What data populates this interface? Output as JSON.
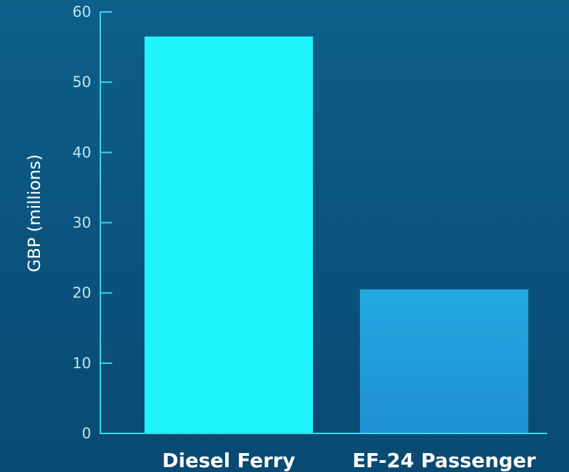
{
  "chart_data": {
    "type": "bar",
    "categories": [
      "Diesel Ferry",
      "EF-24 Passenger"
    ],
    "values": [
      56.5,
      20.5
    ],
    "title": "",
    "xlabel": "",
    "ylabel": "GBP (millions)",
    "ylim": [
      0,
      60
    ],
    "yticks": [
      0,
      10,
      20,
      30,
      40,
      50,
      60
    ],
    "grid": false,
    "legend": "none"
  },
  "colors": {
    "bar_1": "#1ff4fa",
    "bar_2_top": "#23a9e1",
    "bar_2_bottom": "#1f8fd3",
    "axis": "#3ad9ea",
    "tick_text": "#bfe6f2",
    "category_text": "#ffffff"
  }
}
